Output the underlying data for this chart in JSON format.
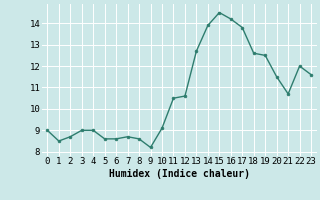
{
  "x": [
    0,
    1,
    2,
    3,
    4,
    5,
    6,
    7,
    8,
    9,
    10,
    11,
    12,
    13,
    14,
    15,
    16,
    17,
    18,
    19,
    20,
    21,
    22,
    23
  ],
  "y": [
    9.0,
    8.5,
    8.7,
    9.0,
    9.0,
    8.6,
    8.6,
    8.7,
    8.6,
    8.2,
    9.1,
    10.5,
    10.6,
    12.7,
    13.9,
    14.5,
    14.2,
    13.8,
    12.6,
    12.5,
    11.5,
    10.7,
    12.0,
    11.6
  ],
  "line_color": "#2e7d6e",
  "marker": "o",
  "marker_size": 2.0,
  "line_width": 1.0,
  "bg_color": "#cce8e8",
  "grid_color": "#ffffff",
  "xlabel": "Humidex (Indice chaleur)",
  "xlabel_fontsize": 7,
  "tick_fontsize": 6.5,
  "ylim": [
    7.8,
    14.9
  ],
  "yticks": [
    8,
    9,
    10,
    11,
    12,
    13,
    14
  ],
  "xlim": [
    -0.5,
    23.5
  ],
  "xticks": [
    0,
    1,
    2,
    3,
    4,
    5,
    6,
    7,
    8,
    9,
    10,
    11,
    12,
    13,
    14,
    15,
    16,
    17,
    18,
    19,
    20,
    21,
    22,
    23
  ]
}
